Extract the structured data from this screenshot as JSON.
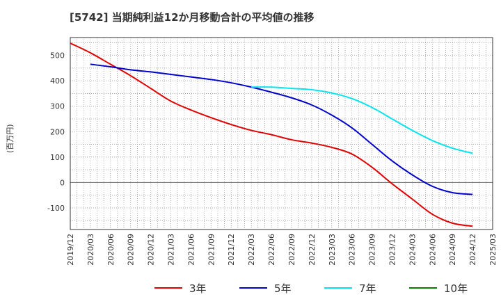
{
  "chart_data": {
    "type": "line",
    "title": "[5742]  当期純利益12か月移動合計の平均値の推移",
    "ylabel": "(百万円)",
    "xlabel": "",
    "x_ticks": [
      "2019/12",
      "2020/03",
      "2020/06",
      "2020/09",
      "2020/12",
      "2021/03",
      "2021/06",
      "2021/09",
      "2021/12",
      "2022/03",
      "2022/06",
      "2022/09",
      "2022/12",
      "2023/03",
      "2023/06",
      "2023/09",
      "2023/12",
      "2024/03",
      "2024/06",
      "2024/09",
      "2024/12",
      "2025/03"
    ],
    "y_ticks": [
      500,
      400,
      300,
      200,
      100,
      0,
      -100
    ],
    "ylim": [
      -185,
      570
    ],
    "grid": true,
    "legend_position": "bottom",
    "series": [
      {
        "name": "3年",
        "color": "#e00000",
        "x": [
          "2019/12",
          "2020/03",
          "2020/06",
          "2020/09",
          "2020/12",
          "2021/03",
          "2021/06",
          "2021/09",
          "2021/12",
          "2022/03",
          "2022/06",
          "2022/09",
          "2022/12",
          "2023/03",
          "2023/06",
          "2023/09",
          "2023/12",
          "2024/03",
          "2024/06",
          "2024/09",
          "2024/12"
        ],
        "values": [
          548,
          510,
          465,
          420,
          370,
          320,
          285,
          255,
          228,
          205,
          188,
          168,
          155,
          138,
          112,
          60,
          -5,
          -65,
          -125,
          -160,
          -172
        ]
      },
      {
        "name": "5年",
        "color": "#0000cc",
        "x": [
          "2020/03",
          "2020/06",
          "2020/09",
          "2020/12",
          "2021/03",
          "2021/06",
          "2021/09",
          "2021/12",
          "2022/03",
          "2022/06",
          "2022/09",
          "2022/12",
          "2023/03",
          "2023/06",
          "2023/09",
          "2023/12",
          "2024/03",
          "2024/06",
          "2024/09",
          "2024/12"
        ],
        "values": [
          465,
          455,
          443,
          435,
          425,
          415,
          405,
          392,
          375,
          355,
          333,
          305,
          265,
          215,
          150,
          85,
          30,
          -15,
          -40,
          -47
        ]
      },
      {
        "name": "7年",
        "color": "#00e5ee",
        "x": [
          "2022/03",
          "2022/06",
          "2022/09",
          "2022/12",
          "2023/03",
          "2023/06",
          "2023/09",
          "2023/12",
          "2024/03",
          "2024/06",
          "2024/09",
          "2024/12"
        ],
        "values": [
          375,
          375,
          370,
          365,
          352,
          330,
          295,
          250,
          205,
          165,
          135,
          115
        ]
      },
      {
        "name": "10年",
        "color": "#008000",
        "x": [],
        "values": []
      }
    ]
  }
}
